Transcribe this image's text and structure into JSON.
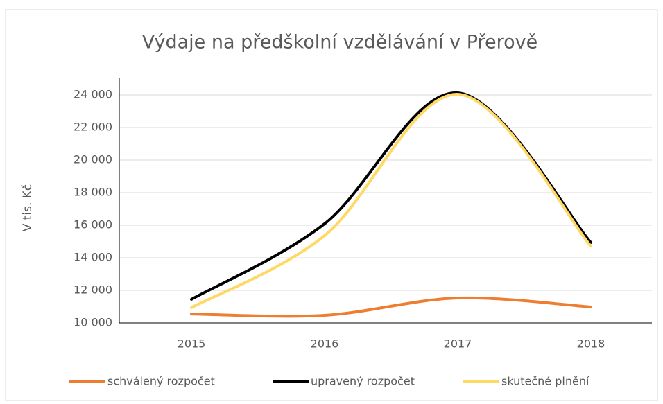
{
  "chart_data": {
    "type": "line",
    "title": "Výdaje na předškolní vzdělávání v Přerově",
    "y_label": "V tis. Kč",
    "categories": [
      "2015",
      "2016",
      "2017",
      "2018"
    ],
    "series": [
      {
        "name": "schválený rozpočet",
        "color": "#ed7d31",
        "values": [
          10550,
          10470,
          11530,
          10980
        ]
      },
      {
        "name": "upravený rozpočet",
        "color": "#000000",
        "values": [
          11450,
          16090,
          24130,
          14940
        ]
      },
      {
        "name": "skutečné plnění",
        "color": "#ffd966",
        "values": [
          10940,
          15360,
          24040,
          14720
        ]
      }
    ],
    "ylim": [
      10000,
      24000
    ],
    "yticks": [
      {
        "value": 10000,
        "label": "10 000"
      },
      {
        "value": 12000,
        "label": "12 000"
      },
      {
        "value": 14000,
        "label": "14 000"
      },
      {
        "value": 16000,
        "label": "16 000"
      },
      {
        "value": 18000,
        "label": "18 000"
      },
      {
        "value": 20000,
        "label": "20 000"
      },
      {
        "value": 22000,
        "label": "22 000"
      },
      {
        "value": 24000,
        "label": "24 000"
      }
    ],
    "grid": true,
    "smooth": true,
    "legend": "bottom"
  }
}
